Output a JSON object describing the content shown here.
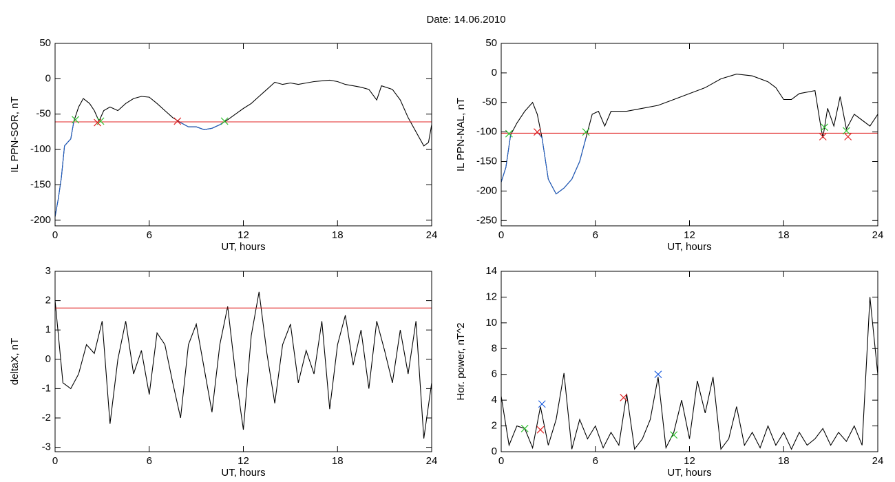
{
  "title": "Date:  14.06.2010",
  "chart_data": [
    {
      "type": "line",
      "xlabel": "UT, hours",
      "ylabel": "IL PPN-SOR, nT",
      "xlim": [
        0,
        24
      ],
      "xticks": [
        0,
        6,
        12,
        18,
        24
      ],
      "ylim": [
        -208,
        50
      ],
      "yticks": [
        -200,
        -150,
        -100,
        -50,
        0,
        50
      ],
      "series": [
        {
          "color": "#000000",
          "x": [
            0,
            0.2,
            0.4,
            0.6,
            0.8,
            1.0,
            1.2,
            1.5,
            1.8,
            2.2,
            2.5,
            2.8,
            3.1,
            3.5,
            4.0,
            4.5,
            5.0,
            5.5,
            6.0,
            6.5,
            7.0,
            7.5,
            8.0,
            8.5,
            9.0,
            9.5,
            10.0,
            10.5,
            11.0,
            11.5,
            12.0,
            12.5,
            13.0,
            13.5,
            14.0,
            14.5,
            15.0,
            15.5,
            16.0,
            16.5,
            17.0,
            17.5,
            18.0,
            18.5,
            19.0,
            19.5,
            20.0,
            20.5,
            20.8,
            21.5,
            22.0,
            22.5,
            23.0,
            23.5,
            23.8,
            24.0
          ],
          "values": [
            -195,
            -170,
            -140,
            -95,
            -90,
            -85,
            -60,
            -40,
            -28,
            -35,
            -45,
            -60,
            -45,
            -40,
            -45,
            -35,
            -28,
            -25,
            -26,
            -35,
            -45,
            -55,
            -62,
            -68,
            -68,
            -72,
            -70,
            -65,
            -58,
            -50,
            -42,
            -35,
            -25,
            -15,
            -5,
            -8,
            -6,
            -8,
            -6,
            -4,
            -3,
            -2,
            -4,
            -8,
            -10,
            -12,
            -15,
            -30,
            -10,
            -15,
            -30,
            -55,
            -75,
            -95,
            -90,
            -65
          ]
        },
        {
          "color": "#1f5fc8",
          "x": [
            0,
            0.2,
            0.4,
            0.6,
            0.8,
            1.0,
            1.2
          ],
          "values": [
            -195,
            -170,
            -140,
            -95,
            -90,
            -85,
            -60
          ]
        },
        {
          "color": "#1f5fc8",
          "x": [
            7.8,
            8.0,
            8.5,
            9.0,
            9.5,
            10.0,
            10.5,
            10.8
          ],
          "values": [
            -60,
            -62,
            -68,
            -68,
            -72,
            -70,
            -65,
            -61
          ]
        },
        {
          "color": "#e02020",
          "x": [
            0,
            24
          ],
          "values": [
            -61,
            -61
          ]
        },
        {
          "color": "#30c030",
          "marker": "x",
          "x": [
            1.3,
            2.9,
            10.8
          ],
          "values": [
            -58,
            -60,
            -60
          ]
        },
        {
          "color": "#e02020",
          "marker": "x",
          "x": [
            2.7,
            7.8
          ],
          "values": [
            -62,
            -60
          ]
        }
      ]
    },
    {
      "type": "line",
      "xlabel": "UT, hours",
      "ylabel": "IL PPN-NAL, nT",
      "xlim": [
        0,
        24
      ],
      "xticks": [
        0,
        6,
        12,
        18,
        24
      ],
      "ylim": [
        -259,
        50
      ],
      "yticks": [
        -250,
        -200,
        -150,
        -100,
        -50,
        0,
        50
      ],
      "series": [
        {
          "color": "#000000",
          "x": [
            0,
            0.3,
            0.6,
            1.0,
            1.5,
            2.0,
            2.3,
            2.6,
            3.0,
            3.5,
            4.0,
            4.5,
            5.0,
            5.4,
            5.8,
            6.2,
            6.6,
            7.0,
            8.0,
            9.0,
            10.0,
            11.0,
            12.0,
            13.0,
            14.0,
            15.0,
            16.0,
            17.0,
            17.5,
            18.0,
            18.5,
            19.0,
            20.0,
            20.3,
            20.5,
            20.8,
            21.2,
            21.6,
            22.0,
            22.5,
            23.0,
            23.5,
            24.0
          ],
          "values": [
            -185,
            -160,
            -105,
            -85,
            -65,
            -50,
            -70,
            -110,
            -180,
            -205,
            -195,
            -180,
            -150,
            -110,
            -70,
            -65,
            -90,
            -65,
            -65,
            -60,
            -55,
            -45,
            -35,
            -25,
            -10,
            -2,
            -5,
            -15,
            -25,
            -45,
            -45,
            -35,
            -30,
            -80,
            -110,
            -60,
            -90,
            -40,
            -95,
            -70,
            -80,
            -90,
            -70
          ]
        },
        {
          "color": "#1f5fc8",
          "x": [
            0,
            0.3,
            0.6
          ],
          "values": [
            -185,
            -160,
            -105
          ]
        },
        {
          "color": "#1f5fc8",
          "x": [
            2.3,
            2.6,
            3.0,
            3.5,
            4.0,
            4.5,
            5.0,
            5.4
          ],
          "values": [
            -100,
            -110,
            -180,
            -205,
            -195,
            -180,
            -150,
            -110
          ]
        },
        {
          "color": "#e02020",
          "x": [
            0,
            24
          ],
          "values": [
            -102,
            -102
          ]
        },
        {
          "color": "#30c030",
          "marker": "x",
          "x": [
            0.5,
            5.4,
            20.6,
            22
          ],
          "values": [
            -103,
            -100,
            -92,
            -98
          ]
        },
        {
          "color": "#e02020",
          "marker": "x",
          "x": [
            2.3,
            20.5,
            22.1
          ],
          "values": [
            -100,
            -108,
            -108
          ]
        }
      ]
    },
    {
      "type": "line",
      "xlabel": "UT, hours",
      "ylabel": "deltaX, nT",
      "xlim": [
        0,
        24
      ],
      "xticks": [
        0,
        6,
        12,
        18,
        24
      ],
      "ylim": [
        -3.15,
        3
      ],
      "yticks": [
        -3,
        -2,
        -1,
        0,
        1,
        2,
        3
      ],
      "series": [
        {
          "color": "#000000",
          "x": [
            0,
            0.5,
            1,
            1.5,
            2,
            2.5,
            3,
            3.5,
            4,
            4.5,
            5,
            5.5,
            6,
            6.5,
            7,
            7.5,
            8,
            8.5,
            9,
            9.5,
            10,
            10.5,
            11,
            11.5,
            12,
            12.5,
            13,
            13.5,
            14,
            14.5,
            15,
            15.5,
            16,
            16.5,
            17,
            17.5,
            18,
            18.5,
            19,
            19.5,
            20,
            20.5,
            21,
            21.5,
            22,
            22.5,
            23,
            23.5,
            24
          ],
          "values": [
            2.0,
            -0.8,
            -1.0,
            -0.5,
            0.5,
            0.2,
            1.3,
            -2.2,
            0.0,
            1.3,
            -0.5,
            0.3,
            -1.2,
            0.9,
            0.5,
            -0.8,
            -2.0,
            0.5,
            1.2,
            -0.3,
            -1.8,
            0.5,
            1.8,
            -0.5,
            -2.4,
            0.8,
            2.3,
            0.2,
            -1.5,
            0.5,
            1.2,
            -0.8,
            0.3,
            -0.5,
            1.3,
            -1.7,
            0.5,
            1.5,
            -0.2,
            1.0,
            -1.0,
            1.3,
            0.3,
            -0.8,
            1.0,
            -0.5,
            1.3,
            -2.7,
            -0.8
          ]
        },
        {
          "color": "#e02020",
          "x": [
            0,
            24
          ],
          "values": [
            1.75,
            1.75
          ]
        }
      ]
    },
    {
      "type": "line",
      "xlabel": "UT, hours",
      "ylabel": "Hor. power, nT^2",
      "xlim": [
        0,
        24
      ],
      "xticks": [
        0,
        6,
        12,
        18,
        24
      ],
      "ylim": [
        0,
        14
      ],
      "yticks": [
        0,
        2,
        4,
        6,
        8,
        10,
        12,
        14
      ],
      "series": [
        {
          "color": "#000000",
          "x": [
            0,
            0.5,
            1,
            1.5,
            2,
            2.5,
            3,
            3.5,
            4,
            4.5,
            5,
            5.5,
            6,
            6.5,
            7,
            7.5,
            8,
            8.5,
            9,
            9.5,
            10,
            10.5,
            11,
            11.5,
            12,
            12.5,
            13,
            13.5,
            14,
            14.5,
            15,
            15.5,
            16,
            16.5,
            17,
            17.5,
            18,
            18.5,
            19,
            19.5,
            20,
            20.5,
            21,
            21.5,
            22,
            22.5,
            23,
            23.5,
            24
          ],
          "values": [
            4.3,
            0.5,
            2.0,
            1.8,
            0.3,
            3.5,
            0.5,
            2.5,
            6.1,
            0.2,
            2.5,
            1.0,
            2.0,
            0.3,
            1.5,
            0.5,
            4.5,
            0.2,
            1.0,
            2.5,
            5.8,
            0.3,
            1.5,
            4.0,
            1.0,
            5.5,
            3.0,
            5.8,
            0.2,
            1.0,
            3.5,
            0.5,
            1.5,
            0.3,
            2.0,
            0.5,
            1.5,
            0.2,
            1.5,
            0.5,
            1.0,
            1.8,
            0.5,
            1.5,
            0.8,
            2.0,
            0.5,
            12.0,
            6.0
          ]
        },
        {
          "color": "#2060e0",
          "marker": "x",
          "x": [
            2.6,
            10
          ],
          "values": [
            3.7,
            6
          ]
        },
        {
          "color": "#e02020",
          "marker": "x",
          "x": [
            2.5,
            7.8
          ],
          "values": [
            1.7,
            4.2
          ]
        },
        {
          "color": "#30c030",
          "marker": "x",
          "x": [
            1.5,
            11
          ],
          "values": [
            1.8,
            1.3
          ]
        }
      ]
    }
  ]
}
